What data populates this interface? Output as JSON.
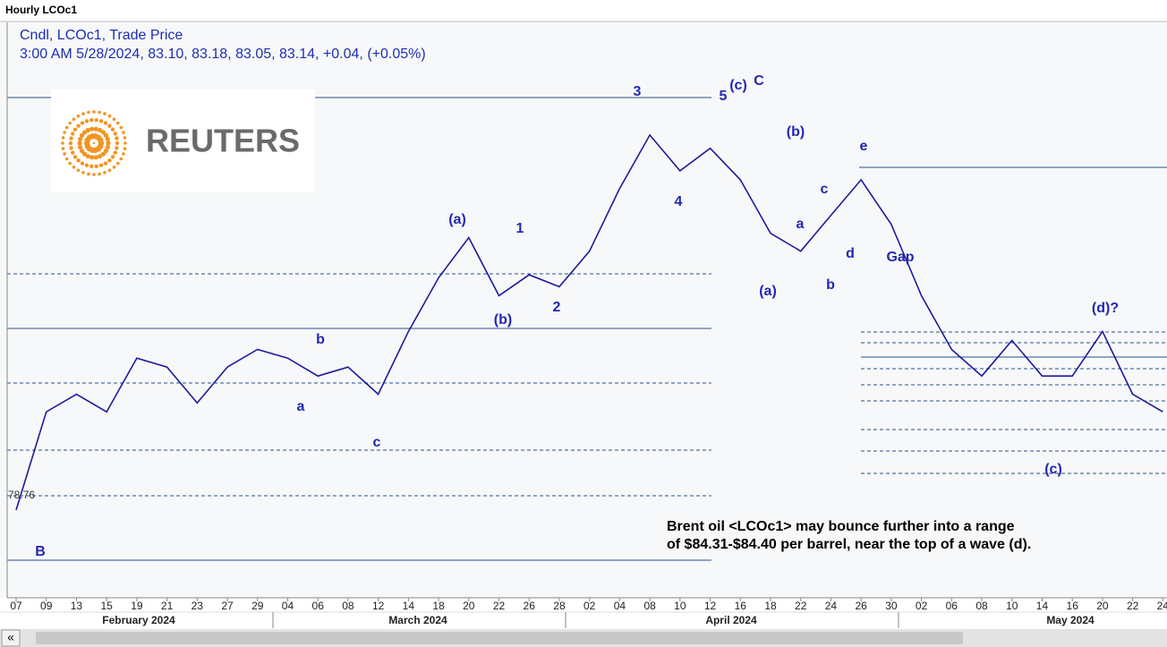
{
  "window_title": "Hourly LCOc1",
  "logo_text": "REUTERS",
  "scroll_button": "«",
  "chart_data": {
    "type": "line",
    "title": "Cndl, LCOc1, Trade Price",
    "subtitle": "3:00 AM 5/28/2024, 83.10, 83.18, 83.05, 83.14, +0.04, (+0.05%)",
    "categories": [
      "07",
      "09",
      "13",
      "15",
      "19",
      "21",
      "23",
      "27",
      "29",
      "04",
      "06",
      "08",
      "12",
      "14",
      "18",
      "20",
      "22",
      "26",
      "28",
      "02",
      "04",
      "08",
      "10",
      "12",
      "16",
      "18",
      "22",
      "24",
      "26",
      "30",
      "02",
      "06",
      "08",
      "10",
      "14",
      "16",
      "20",
      "22",
      "24"
    ],
    "values": [
      78.23,
      81.85,
      82.5,
      81.85,
      83.83,
      83.5,
      82.18,
      83.5,
      84.15,
      83.83,
      83.17,
      83.5,
      82.5,
      84.81,
      86.79,
      88.27,
      86.13,
      86.9,
      86.46,
      87.77,
      90.08,
      92.05,
      90.73,
      91.56,
      90.4,
      88.43,
      87.77,
      89.09,
      90.4,
      88.76,
      86.13,
      84.15,
      83.17,
      84.48,
      83.17,
      83.17,
      84.81,
      82.5,
      81.85
    ],
    "color": "#1c1c9c",
    "month_labels": [
      "February 2024",
      "March 2024",
      "April 2024",
      "May 2024"
    ],
    "ylim": [
      75,
      96.2
    ],
    "level_label": 78.76,
    "wave_labels": [
      "B",
      "a",
      "b",
      "c",
      "(a)",
      "(b)",
      "1",
      "2",
      "3",
      "4",
      "5",
      "(c)",
      "C",
      "(a)",
      "(b)",
      "a",
      "b",
      "c",
      "d",
      "e",
      "Gap",
      "(d)?",
      "(c)"
    ],
    "annotation": [
      "Brent oil <LCOc1> may bounce further into a range",
      "of $84.31-$84.40 per barrel, near the top of a wave (d)."
    ]
  }
}
